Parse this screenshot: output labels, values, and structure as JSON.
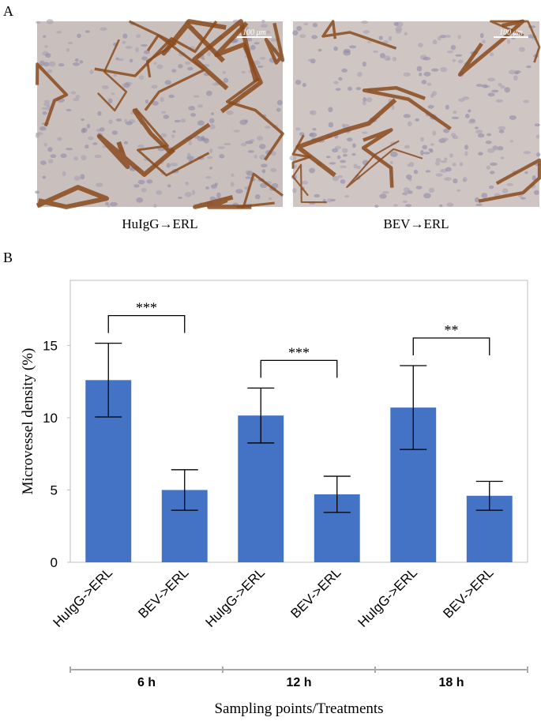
{
  "panel_a": {
    "label": "A",
    "images": [
      {
        "caption": "HuIgG→ERL",
        "scale": "100 μm"
      },
      {
        "caption": "BEV→ERL",
        "scale": "100 μm"
      }
    ]
  },
  "chart_data": {
    "type": "bar",
    "panel_label": "B",
    "ylabel": "Microvessel density (%)",
    "xlabel": "Sampling points/Treatments",
    "categories": [
      "HuIgG->ERL",
      "BEV->ERL",
      "HuIgG->ERL",
      "BEV->ERL",
      "HuIgG->ERL",
      "BEV->ERL"
    ],
    "values": [
      12.6,
      5.0,
      10.15,
      4.7,
      10.7,
      4.6
    ],
    "errors": [
      2.55,
      1.4,
      1.9,
      1.25,
      2.9,
      1.0
    ],
    "color": "#4472c4",
    "groups": [
      "6 h",
      "12 h",
      "18 h"
    ],
    "annotations": [
      {
        "text": "***",
        "between": [
          0,
          1
        ]
      },
      {
        "text": "***",
        "between": [
          2,
          3
        ]
      },
      {
        "text": "**",
        "between": [
          4,
          5
        ]
      }
    ],
    "ylim": [
      0,
      19.5
    ],
    "yticks": [
      0,
      5,
      10,
      15
    ],
    "grid": false
  }
}
